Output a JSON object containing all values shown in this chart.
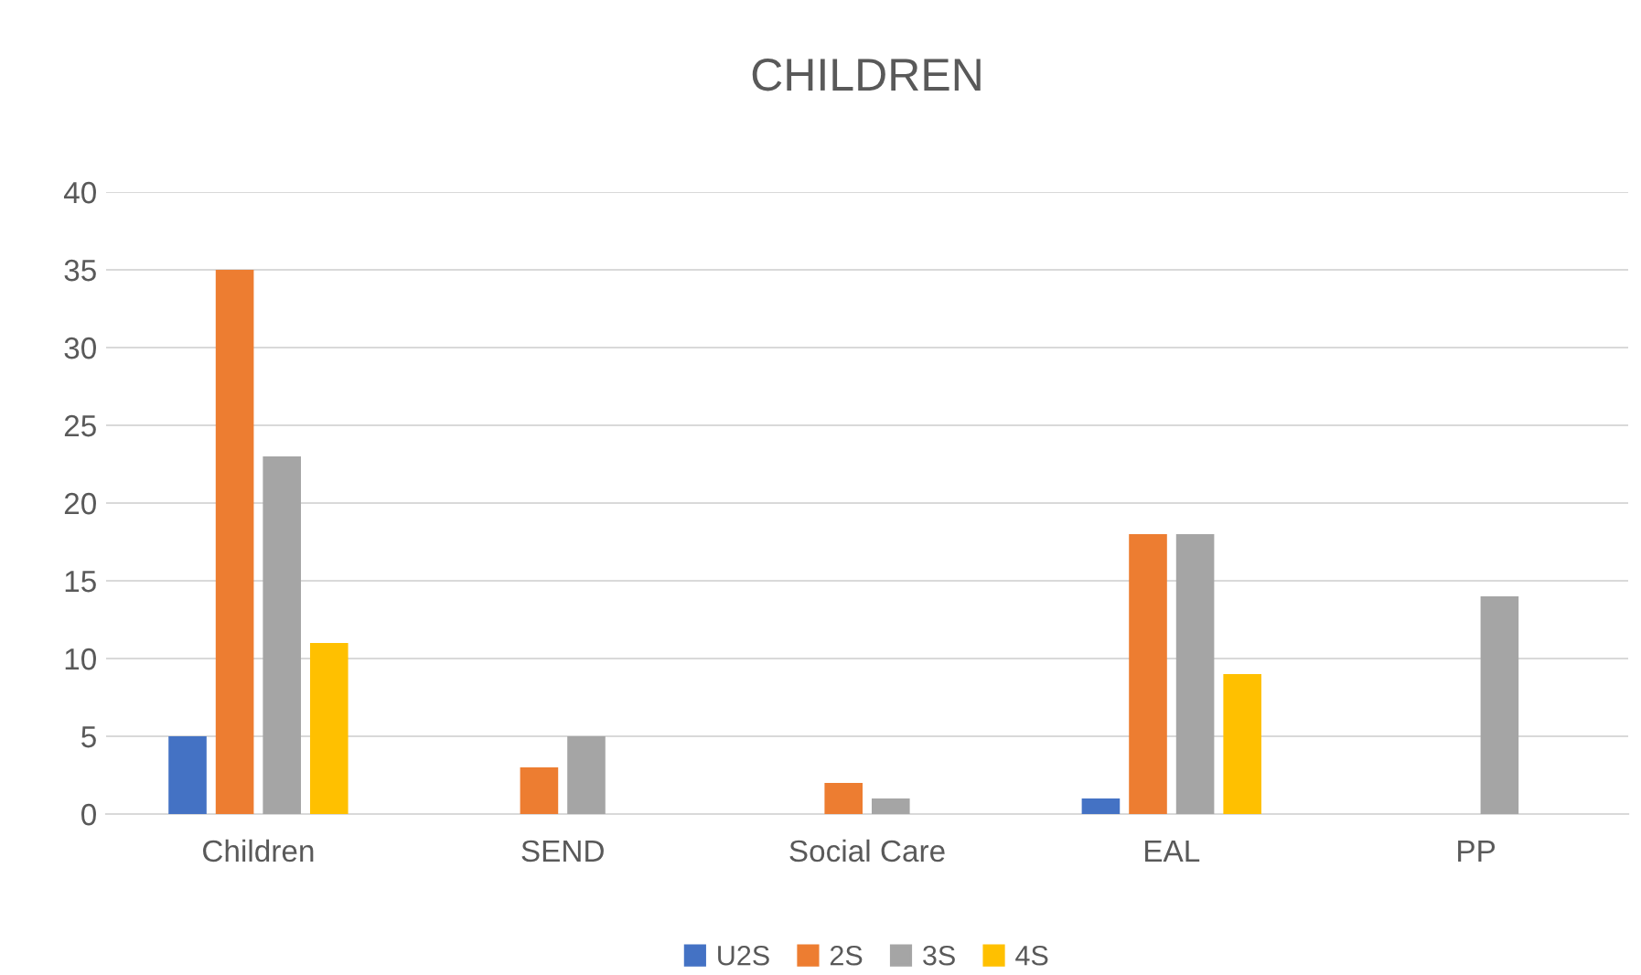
{
  "chart_data": {
    "type": "bar",
    "title": "CHILDREN",
    "categories": [
      "Children",
      "SEND",
      "Social Care",
      "EAL",
      "PP"
    ],
    "series": [
      {
        "name": "U2S",
        "color": "#4472c4",
        "values": [
          5,
          0,
          0,
          1,
          0
        ]
      },
      {
        "name": "2S",
        "color": "#ed7d31",
        "values": [
          35,
          3,
          2,
          18,
          0
        ]
      },
      {
        "name": "3S",
        "color": "#a5a5a5",
        "values": [
          23,
          5,
          1,
          18,
          14
        ]
      },
      {
        "name": "4S",
        "color": "#ffc000",
        "values": [
          11,
          0,
          0,
          9,
          0
        ]
      }
    ],
    "ylim": [
      0,
      40
    ],
    "yticks": [
      0,
      5,
      10,
      15,
      20,
      25,
      30,
      35,
      40
    ],
    "grid": "y",
    "legend": "bottom"
  }
}
